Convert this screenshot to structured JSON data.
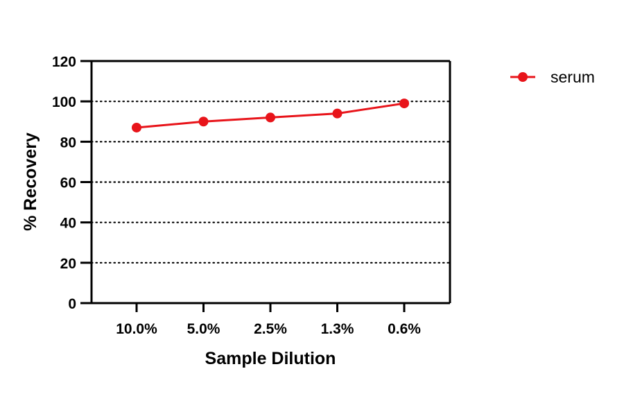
{
  "chart_data": {
    "type": "line",
    "title": "",
    "xlabel": "Sample Dilution",
    "ylabel": "% Recovery",
    "categories": [
      "10.0%",
      "5.0%",
      "2.5%",
      "1.3%",
      "0.6%"
    ],
    "series": [
      {
        "name": "serum",
        "values": [
          87,
          90,
          92,
          94,
          99
        ],
        "color": "#e8141a"
      }
    ],
    "ylim": [
      0,
      120
    ],
    "yticks": [
      "0",
      "20",
      "40",
      "60",
      "80",
      "100",
      "120"
    ],
    "grid": "horizontal dotted",
    "legend": "top-right"
  }
}
